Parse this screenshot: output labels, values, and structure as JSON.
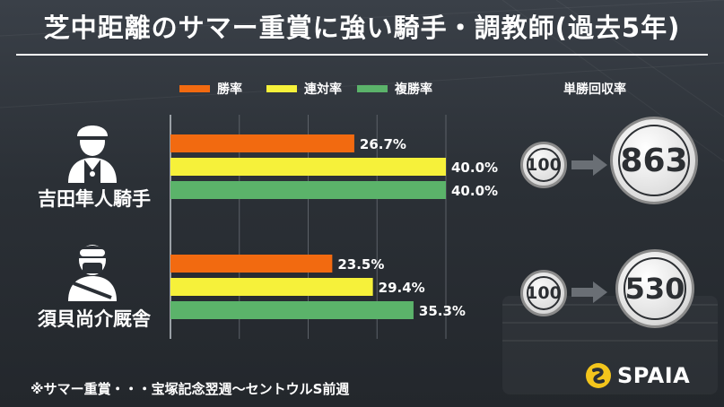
{
  "title": "芝中距離のサマー重賞に強い騎手・調教師(過去5年)",
  "legend": [
    {
      "label": "勝率",
      "color": "#f26a10"
    },
    {
      "label": "連対率",
      "color": "#f6f13a"
    },
    {
      "label": "複勝率",
      "color": "#5bb36a"
    }
  ],
  "roi_header": "単勝回収率",
  "chart_data": {
    "type": "bar",
    "orientation": "horizontal",
    "categories": [
      "吉田隼人騎手",
      "須貝尚介厩舎"
    ],
    "series": [
      {
        "name": "勝率",
        "values": [
          26.7,
          23.5
        ],
        "labels": [
          "26.7%",
          "23.5%"
        ]
      },
      {
        "name": "連対率",
        "values": [
          40.0,
          29.4
        ],
        "labels": [
          "40.0%",
          "29.4%"
        ]
      },
      {
        "name": "複勝率",
        "values": [
          40.0,
          35.3
        ],
        "labels": [
          "40.0%",
          "35.3%"
        ]
      }
    ],
    "xlim": [
      0,
      40
    ],
    "grid": true,
    "legend_position": "top"
  },
  "subjects": [
    {
      "name": "吉田隼人騎手",
      "roi_base": "100",
      "roi_value": "863"
    },
    {
      "name": "須貝尚介厩舎",
      "roi_base": "100",
      "roi_value": "530"
    }
  ],
  "footnote": "※サマー重賞・・・宝塚記念翌週〜セントウルS前週",
  "brand": "SPAIA"
}
